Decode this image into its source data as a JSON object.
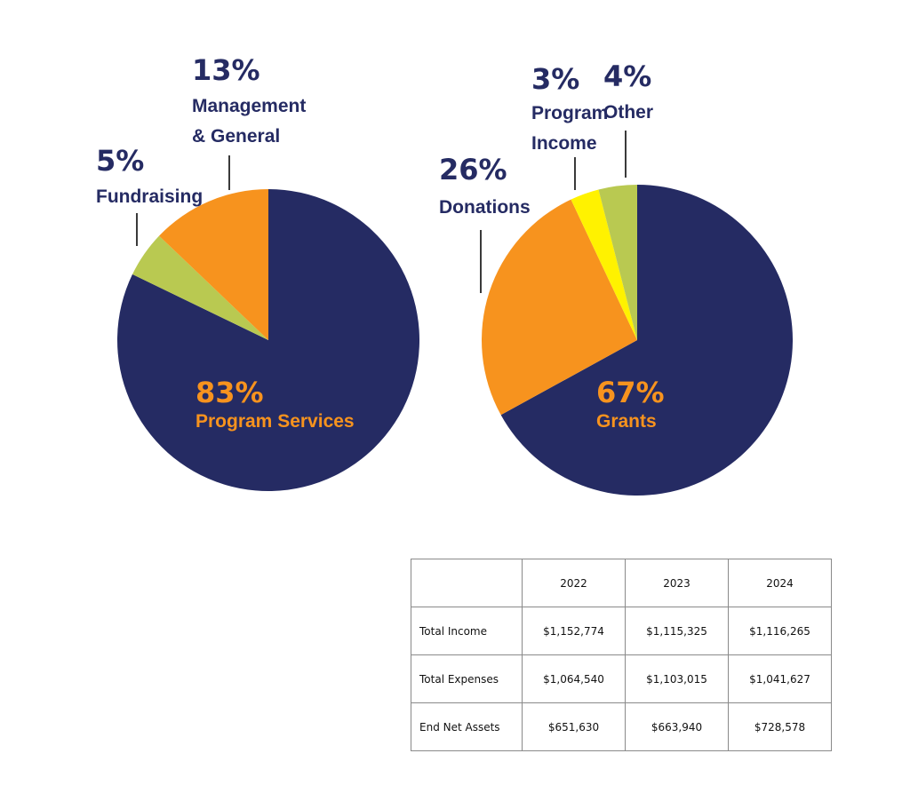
{
  "colors": {
    "navy": "#252b63",
    "orange": "#f7931e",
    "green": "#b9c951",
    "yellow": "#fff200",
    "line": "#3a3a3a"
  },
  "chart_data": [
    {
      "type": "pie",
      "slices": [
        {
          "value": 83,
          "pct_label": "83%",
          "label": "Program Services",
          "color": "#252b63"
        },
        {
          "value": 5,
          "pct_label": "5%",
          "label": "Fundraising",
          "color": "#b9c951"
        },
        {
          "value": 13,
          "pct_label": "13%",
          "label_lines": [
            "Management",
            "& General"
          ],
          "color": "#f7931e"
        }
      ]
    },
    {
      "type": "pie",
      "slices": [
        {
          "value": 67,
          "pct_label": "67%",
          "label": "Grants",
          "color": "#252b63"
        },
        {
          "value": 26,
          "pct_label": "26%",
          "label": "Donations",
          "color": "#f7931e"
        },
        {
          "value": 3,
          "pct_label": "3%",
          "label_lines": [
            "Program",
            "Income"
          ],
          "color": "#fff200"
        },
        {
          "value": 4,
          "pct_label": "4%",
          "label": "Other",
          "color": "#b9c951"
        }
      ]
    }
  ],
  "table": {
    "header": [
      "",
      "2022",
      "2023",
      "2024"
    ],
    "rows": [
      {
        "label": "Total Income",
        "values": [
          "$1,152,774",
          "$1,115,325",
          "$1,116,265"
        ]
      },
      {
        "label": "Total Expenses",
        "values": [
          "$1,064,540",
          "$1,103,015",
          "$1,041,627"
        ]
      },
      {
        "label": "End Net Assets",
        "values": [
          "$651,630",
          "$663,940",
          "$728,578"
        ]
      }
    ]
  }
}
